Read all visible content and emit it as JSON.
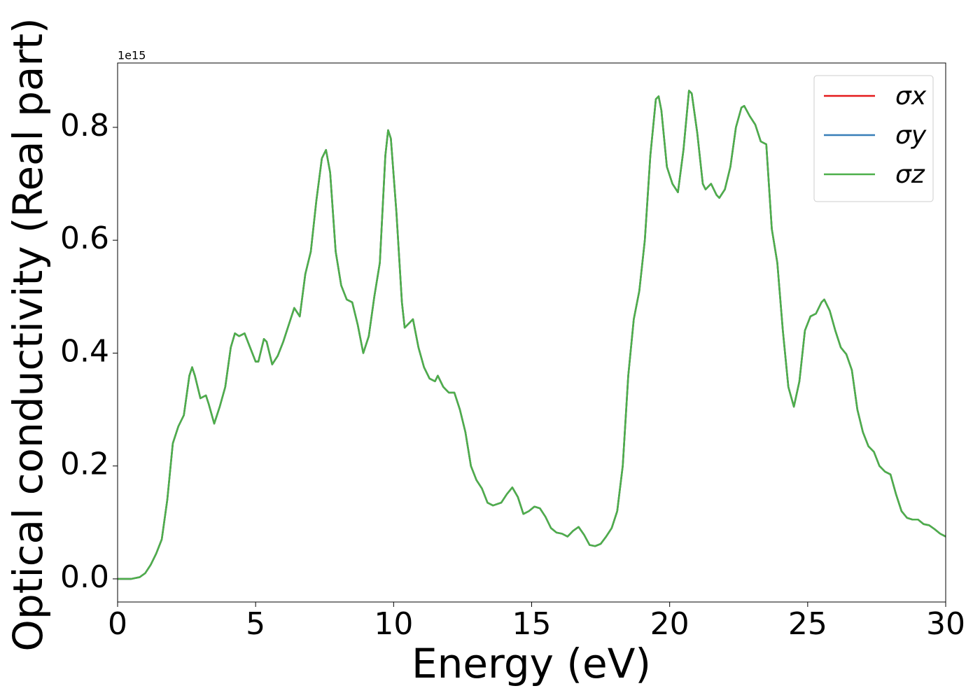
{
  "chart_data": {
    "type": "line",
    "xlabel": "Energy (eV)",
    "ylabel": "Optical conductivity (Real part)",
    "y_offset_label": "1e15",
    "xlim": [
      0,
      30
    ],
    "ylim": [
      -0.041,
      0.914
    ],
    "xticks": [
      0,
      5,
      10,
      15,
      20,
      25,
      30
    ],
    "yticks": [
      {
        "value": 0,
        "label": "0.0"
      },
      0.2,
      0.4,
      0.6,
      0.8
    ],
    "legend": "upper right",
    "x": [
      0,
      0.5,
      0.8,
      1.0,
      1.2,
      1.4,
      1.6,
      1.8,
      2.0,
      2.2,
      2.4,
      2.6,
      2.7,
      2.8,
      3.0,
      3.2,
      3.3,
      3.5,
      3.7,
      3.9,
      4.1,
      4.25,
      4.4,
      4.6,
      4.8,
      5.0,
      5.1,
      5.3,
      5.4,
      5.6,
      5.8,
      6.0,
      6.2,
      6.4,
      6.6,
      6.8,
      7.0,
      7.2,
      7.4,
      7.55,
      7.7,
      7.9,
      8.1,
      8.3,
      8.5,
      8.7,
      8.9,
      9.1,
      9.3,
      9.5,
      9.7,
      9.8,
      9.9,
      10.1,
      10.3,
      10.4,
      10.6,
      10.7,
      10.9,
      11.1,
      11.3,
      11.5,
      11.6,
      11.8,
      12.0,
      12.2,
      12.4,
      12.6,
      12.8,
      13.0,
      13.2,
      13.4,
      13.6,
      13.9,
      14.1,
      14.3,
      14.5,
      14.7,
      14.9,
      15.1,
      15.3,
      15.5,
      15.7,
      15.9,
      16.1,
      16.3,
      16.5,
      16.7,
      16.9,
      17.1,
      17.3,
      17.5,
      17.7,
      17.9,
      18.1,
      18.3,
      18.5,
      18.7,
      18.9,
      19.1,
      19.3,
      19.5,
      19.6,
      19.7,
      19.9,
      20.1,
      20.3,
      20.5,
      20.7,
      20.8,
      21.0,
      21.2,
      21.3,
      21.5,
      21.7,
      21.8,
      22.0,
      22.2,
      22.4,
      22.6,
      22.7,
      22.9,
      23.1,
      23.3,
      23.5,
      23.7,
      23.9,
      24.1,
      24.3,
      24.5,
      24.7,
      24.9,
      25.1,
      25.3,
      25.5,
      25.6,
      25.8,
      26.0,
      26.2,
      26.4,
      26.6,
      26.8,
      27.0,
      27.2,
      27.4,
      27.6,
      27.8,
      28.0,
      28.2,
      28.4,
      28.6,
      28.8,
      29.0,
      29.2,
      29.4,
      29.6,
      29.8,
      30.0
    ],
    "series": [
      {
        "name": "σx",
        "color": "#e41a1c",
        "values": [
          0,
          0,
          0.003,
          0.01,
          0.025,
          0.045,
          0.07,
          0.14,
          0.24,
          0.27,
          0.29,
          0.36,
          0.375,
          0.36,
          0.32,
          0.325,
          0.31,
          0.275,
          0.305,
          0.34,
          0.41,
          0.435,
          0.43,
          0.435,
          0.41,
          0.385,
          0.385,
          0.425,
          0.42,
          0.38,
          0.395,
          0.42,
          0.45,
          0.48,
          0.465,
          0.54,
          0.58,
          0.67,
          0.745,
          0.76,
          0.72,
          0.58,
          0.52,
          0.495,
          0.49,
          0.45,
          0.4,
          0.43,
          0.5,
          0.56,
          0.75,
          0.795,
          0.78,
          0.65,
          0.49,
          0.445,
          0.455,
          0.46,
          0.41,
          0.375,
          0.355,
          0.35,
          0.36,
          0.34,
          0.33,
          0.33,
          0.3,
          0.26,
          0.2,
          0.175,
          0.16,
          0.135,
          0.13,
          0.135,
          0.15,
          0.162,
          0.145,
          0.115,
          0.12,
          0.128,
          0.125,
          0.11,
          0.09,
          0.082,
          0.08,
          0.075,
          0.085,
          0.092,
          0.078,
          0.06,
          0.058,
          0.062,
          0.075,
          0.09,
          0.12,
          0.2,
          0.36,
          0.46,
          0.51,
          0.6,
          0.75,
          0.85,
          0.855,
          0.83,
          0.73,
          0.7,
          0.685,
          0.76,
          0.865,
          0.86,
          0.79,
          0.7,
          0.69,
          0.7,
          0.68,
          0.675,
          0.69,
          0.73,
          0.8,
          0.835,
          0.838,
          0.82,
          0.805,
          0.775,
          0.77,
          0.62,
          0.56,
          0.44,
          0.34,
          0.305,
          0.35,
          0.44,
          0.465,
          0.47,
          0.49,
          0.495,
          0.475,
          0.44,
          0.41,
          0.398,
          0.37,
          0.3,
          0.26,
          0.235,
          0.225,
          0.2,
          0.19,
          0.185,
          0.15,
          0.12,
          0.108,
          0.105,
          0.105,
          0.097,
          0.095,
          0.088,
          0.08,
          0.075
        ]
      },
      {
        "name": "σy",
        "color": "#377eb8",
        "values": [
          0,
          0,
          0.003,
          0.01,
          0.025,
          0.045,
          0.07,
          0.14,
          0.24,
          0.27,
          0.29,
          0.36,
          0.375,
          0.36,
          0.32,
          0.325,
          0.31,
          0.275,
          0.305,
          0.34,
          0.41,
          0.435,
          0.43,
          0.435,
          0.41,
          0.385,
          0.385,
          0.425,
          0.42,
          0.38,
          0.395,
          0.42,
          0.45,
          0.48,
          0.465,
          0.54,
          0.58,
          0.67,
          0.745,
          0.76,
          0.72,
          0.58,
          0.52,
          0.495,
          0.49,
          0.45,
          0.4,
          0.43,
          0.5,
          0.56,
          0.75,
          0.795,
          0.78,
          0.65,
          0.49,
          0.445,
          0.455,
          0.46,
          0.41,
          0.375,
          0.355,
          0.35,
          0.36,
          0.34,
          0.33,
          0.33,
          0.3,
          0.26,
          0.2,
          0.175,
          0.16,
          0.135,
          0.13,
          0.135,
          0.15,
          0.162,
          0.145,
          0.115,
          0.12,
          0.128,
          0.125,
          0.11,
          0.09,
          0.082,
          0.08,
          0.075,
          0.085,
          0.092,
          0.078,
          0.06,
          0.058,
          0.062,
          0.075,
          0.09,
          0.12,
          0.2,
          0.36,
          0.46,
          0.51,
          0.6,
          0.75,
          0.85,
          0.855,
          0.83,
          0.73,
          0.7,
          0.685,
          0.76,
          0.865,
          0.86,
          0.79,
          0.7,
          0.69,
          0.7,
          0.68,
          0.675,
          0.69,
          0.73,
          0.8,
          0.835,
          0.838,
          0.82,
          0.805,
          0.775,
          0.77,
          0.62,
          0.56,
          0.44,
          0.34,
          0.305,
          0.35,
          0.44,
          0.465,
          0.47,
          0.49,
          0.495,
          0.475,
          0.44,
          0.41,
          0.398,
          0.37,
          0.3,
          0.26,
          0.235,
          0.225,
          0.2,
          0.19,
          0.185,
          0.15,
          0.12,
          0.108,
          0.105,
          0.105,
          0.097,
          0.095,
          0.088,
          0.08,
          0.075
        ]
      },
      {
        "name": "σz",
        "color": "#4daf4a",
        "values": [
          0,
          0,
          0.003,
          0.01,
          0.025,
          0.045,
          0.07,
          0.14,
          0.24,
          0.27,
          0.29,
          0.36,
          0.375,
          0.36,
          0.32,
          0.325,
          0.31,
          0.275,
          0.305,
          0.34,
          0.41,
          0.435,
          0.43,
          0.435,
          0.41,
          0.385,
          0.385,
          0.425,
          0.42,
          0.38,
          0.395,
          0.42,
          0.45,
          0.48,
          0.465,
          0.54,
          0.58,
          0.67,
          0.745,
          0.76,
          0.72,
          0.58,
          0.52,
          0.495,
          0.49,
          0.45,
          0.4,
          0.43,
          0.5,
          0.56,
          0.75,
          0.795,
          0.78,
          0.65,
          0.49,
          0.445,
          0.455,
          0.46,
          0.41,
          0.375,
          0.355,
          0.35,
          0.36,
          0.34,
          0.33,
          0.33,
          0.3,
          0.26,
          0.2,
          0.175,
          0.16,
          0.135,
          0.13,
          0.135,
          0.15,
          0.162,
          0.145,
          0.115,
          0.12,
          0.128,
          0.125,
          0.11,
          0.09,
          0.082,
          0.08,
          0.075,
          0.085,
          0.092,
          0.078,
          0.06,
          0.058,
          0.062,
          0.075,
          0.09,
          0.12,
          0.2,
          0.36,
          0.46,
          0.51,
          0.6,
          0.75,
          0.85,
          0.855,
          0.83,
          0.73,
          0.7,
          0.685,
          0.76,
          0.865,
          0.86,
          0.79,
          0.7,
          0.69,
          0.7,
          0.68,
          0.675,
          0.69,
          0.73,
          0.8,
          0.835,
          0.838,
          0.82,
          0.805,
          0.775,
          0.77,
          0.62,
          0.56,
          0.44,
          0.34,
          0.305,
          0.35,
          0.44,
          0.465,
          0.47,
          0.49,
          0.495,
          0.475,
          0.44,
          0.41,
          0.398,
          0.37,
          0.3,
          0.26,
          0.235,
          0.225,
          0.2,
          0.19,
          0.185,
          0.15,
          0.12,
          0.108,
          0.105,
          0.105,
          0.097,
          0.095,
          0.088,
          0.08,
          0.075
        ]
      }
    ]
  }
}
